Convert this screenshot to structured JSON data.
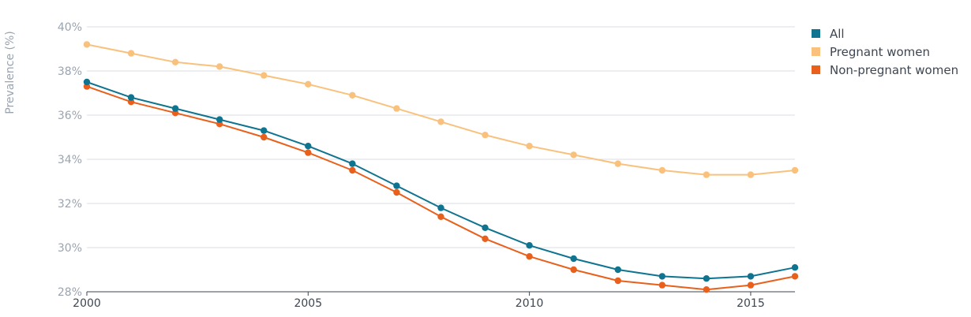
{
  "chart_data": {
    "type": "line",
    "title": "",
    "xlabel": "",
    "ylabel": "Prevalence (%)",
    "x": [
      2000,
      2001,
      2002,
      2003,
      2004,
      2005,
      2006,
      2007,
      2008,
      2009,
      2010,
      2011,
      2012,
      2013,
      2014,
      2015,
      2016
    ],
    "xlim": [
      2000,
      2016
    ],
    "ylim": [
      28,
      40
    ],
    "xticks": [
      2000,
      2005,
      2010,
      2015
    ],
    "xtick_labels": [
      "2000",
      "2005",
      "2010",
      "2015"
    ],
    "yticks": [
      28,
      30,
      32,
      34,
      36,
      38,
      40
    ],
    "ytick_labels": [
      "28%",
      "30%",
      "32%",
      "34%",
      "36%",
      "38%",
      "40%"
    ],
    "grid": "horizontal",
    "legend_position": "top-right",
    "series": [
      {
        "name": "All",
        "color": "#0e7490",
        "values": [
          37.5,
          36.8,
          36.3,
          35.8,
          35.3,
          34.6,
          33.8,
          32.8,
          31.8,
          30.9,
          30.1,
          29.5,
          29.0,
          28.7,
          28.6,
          28.7,
          29.1
        ]
      },
      {
        "name": "Pregnant women",
        "color": "#f9c17c",
        "values": [
          39.2,
          38.8,
          38.4,
          38.2,
          37.8,
          37.4,
          36.9,
          36.3,
          35.7,
          35.1,
          34.6,
          34.2,
          33.8,
          33.5,
          33.3,
          33.3,
          33.5
        ]
      },
      {
        "name": "Non-pregnant women",
        "color": "#e8601c",
        "values": [
          37.3,
          36.6,
          36.1,
          35.6,
          35.0,
          34.3,
          33.5,
          32.5,
          31.4,
          30.4,
          29.6,
          29.0,
          28.5,
          28.3,
          28.1,
          28.3,
          28.7
        ]
      }
    ]
  }
}
